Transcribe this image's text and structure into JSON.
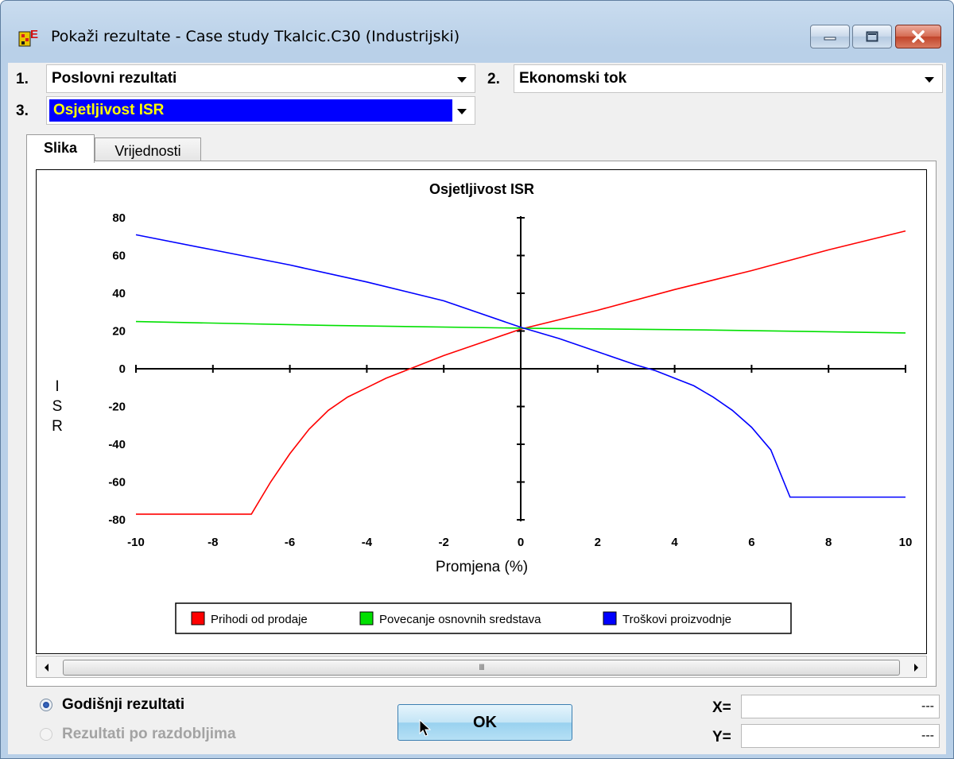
{
  "window": {
    "title": "Pokaži rezultate - Case study Tkalcic.C30 (Industrijski)"
  },
  "selectors": [
    {
      "num": "1.",
      "value": "Poslovni rezultati"
    },
    {
      "num": "2.",
      "value": "Ekonomski tok"
    },
    {
      "num": "3.",
      "value": "Osjetljivost ISR"
    }
  ],
  "tabs": [
    {
      "label": "Slika",
      "active": true
    },
    {
      "label": "Vrijednosti",
      "active": false
    }
  ],
  "chart_data": {
    "type": "line",
    "title": "Osjetljivost ISR",
    "xlabel": "Promjena (%)",
    "ylabel": "I S R",
    "xlim": [
      -10,
      10
    ],
    "ylim": [
      -80,
      80
    ],
    "x_ticks": [
      -10,
      -8,
      -6,
      -4,
      -2,
      0,
      2,
      4,
      6,
      8,
      10
    ],
    "y_ticks": [
      80,
      60,
      40,
      20,
      0,
      -20,
      -40,
      -60,
      -80
    ],
    "legend_position": "bottom-center",
    "series": [
      {
        "name": "Prihodi od prodaje",
        "color": "#ff0000",
        "points": [
          [
            -10,
            -77
          ],
          [
            -7,
            -77
          ],
          [
            -6.5,
            -60
          ],
          [
            -6,
            -45
          ],
          [
            -5.5,
            -32
          ],
          [
            -5,
            -22
          ],
          [
            -4.5,
            -15
          ],
          [
            -4,
            -10
          ],
          [
            -3.5,
            -5
          ],
          [
            -3,
            -1
          ],
          [
            -2.5,
            3
          ],
          [
            -2,
            7
          ],
          [
            -1,
            14
          ],
          [
            0,
            21
          ],
          [
            2,
            31
          ],
          [
            4,
            42
          ],
          [
            6,
            52
          ],
          [
            8,
            63
          ],
          [
            10,
            73
          ]
        ]
      },
      {
        "name": "Povecanje osnovnih sredstava",
        "color": "#00e000",
        "points": [
          [
            -10,
            25
          ],
          [
            -5,
            23
          ],
          [
            0,
            21.5
          ],
          [
            5,
            20.5
          ],
          [
            10,
            19
          ]
        ]
      },
      {
        "name": "Troškovi proizvodnje",
        "color": "#0000ff",
        "points": [
          [
            -10,
            71
          ],
          [
            -8,
            63
          ],
          [
            -6,
            55
          ],
          [
            -4,
            46
          ],
          [
            -2,
            36
          ],
          [
            0,
            22
          ],
          [
            1,
            16
          ],
          [
            2,
            9
          ],
          [
            3,
            2
          ],
          [
            3.5,
            -1
          ],
          [
            4,
            -5
          ],
          [
            4.5,
            -9
          ],
          [
            5,
            -15
          ],
          [
            5.5,
            -22
          ],
          [
            6,
            -31
          ],
          [
            6.5,
            -43
          ],
          [
            7,
            -68
          ],
          [
            10,
            -68
          ]
        ]
      }
    ]
  },
  "footer": {
    "radio1": "Godišnji rezultati",
    "radio2": "Rezultati po razdobljima",
    "ok": "OK",
    "x_label": "X=",
    "y_label": "Y=",
    "x_value": "---",
    "y_value": "---"
  },
  "scrollbar_grip": "III"
}
